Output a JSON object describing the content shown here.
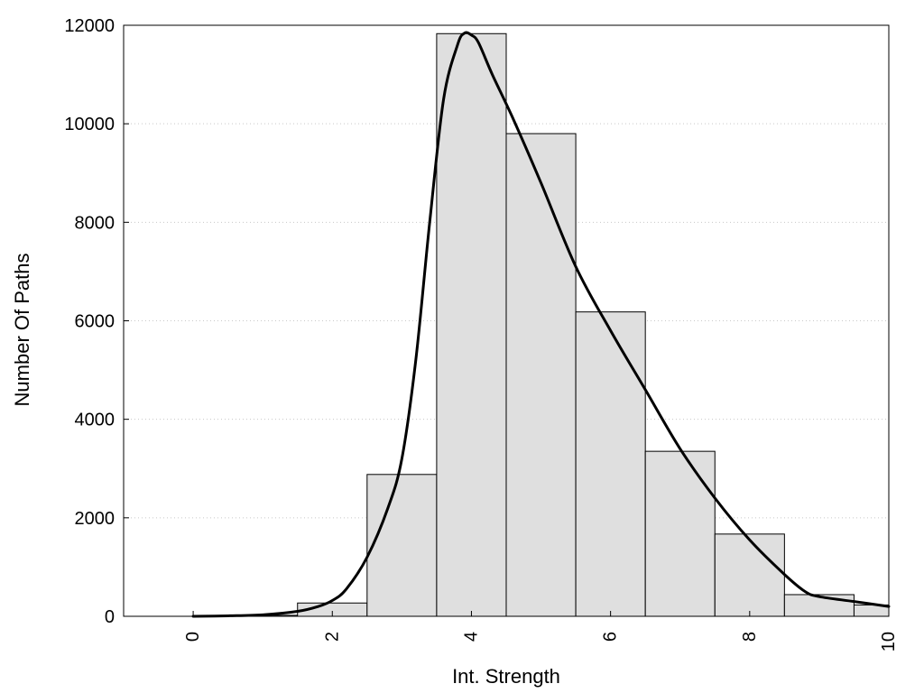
{
  "chart_data": {
    "type": "bar",
    "title": "",
    "xlabel": "Int. Strength",
    "ylabel": "Number Of Paths",
    "xlim": [
      -1,
      10
    ],
    "ylim": [
      0,
      12000
    ],
    "x_ticks": [
      0,
      2,
      4,
      6,
      8,
      10
    ],
    "y_ticks": [
      0,
      2000,
      4000,
      6000,
      8000,
      10000,
      12000
    ],
    "grid": "horizontal dotted",
    "legend": "none",
    "bar_color": "#dfdfdf",
    "bins": [
      {
        "center": 0,
        "value": 0
      },
      {
        "center": 1,
        "value": 20
      },
      {
        "center": 2,
        "value": 270
      },
      {
        "center": 3,
        "value": 2880
      },
      {
        "center": 4,
        "value": 11830
      },
      {
        "center": 5,
        "value": 9800
      },
      {
        "center": 6,
        "value": 6180
      },
      {
        "center": 7,
        "value": 3350
      },
      {
        "center": 8,
        "value": 1670
      },
      {
        "center": 9,
        "value": 440
      },
      {
        "center": 10,
        "value": 230
      }
    ],
    "curve": {
      "x": [
        0,
        0.5,
        1,
        1.5,
        1.8,
        2,
        2.2,
        2.5,
        2.8,
        3,
        3.2,
        3.4,
        3.6,
        3.8,
        3.9,
        4,
        4.1,
        4.3,
        4.6,
        5,
        5.5,
        6,
        6.5,
        7,
        7.5,
        8,
        8.5,
        8.8,
        9,
        9.5,
        10
      ],
      "y": [
        0,
        10,
        30,
        100,
        200,
        320,
        550,
        1200,
        2200,
        3200,
        5200,
        8000,
        10500,
        11600,
        11840,
        11800,
        11650,
        11000,
        10100,
        8800,
        7100,
        5800,
        4600,
        3400,
        2400,
        1550,
        850,
        500,
        400,
        300,
        200
      ]
    }
  }
}
